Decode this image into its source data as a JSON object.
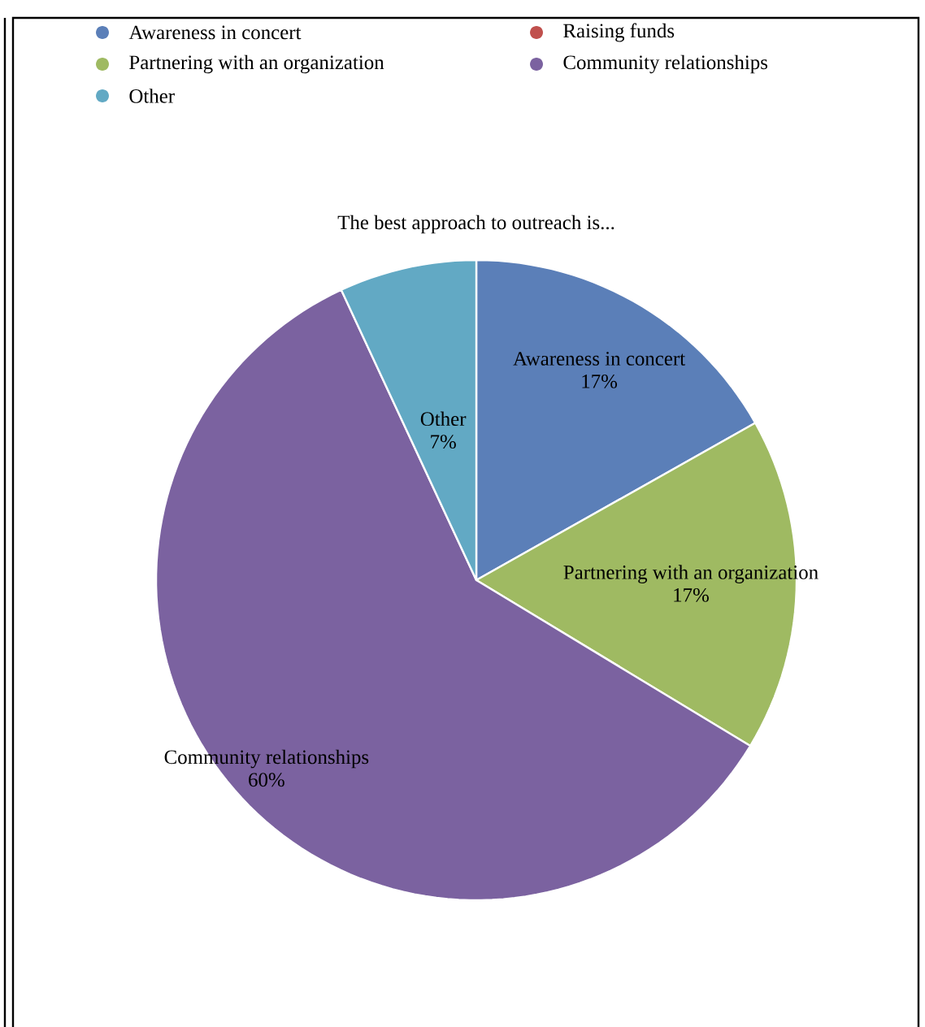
{
  "chart_data": {
    "type": "pie",
    "title": "The best approach to outreach is...",
    "categories": [
      "Awareness in concert",
      "Raising funds",
      "Partnering with an organization",
      "Community relationships",
      "Other"
    ],
    "values": [
      17,
      0,
      17,
      60,
      7
    ],
    "colors": [
      "#5b7fb8",
      "#c0504d",
      "#9fba62",
      "#7b62a0",
      "#62a9c4"
    ],
    "value_labels": [
      "17%",
      null,
      "17%",
      "60%",
      "7%"
    ],
    "legend": "top"
  }
}
